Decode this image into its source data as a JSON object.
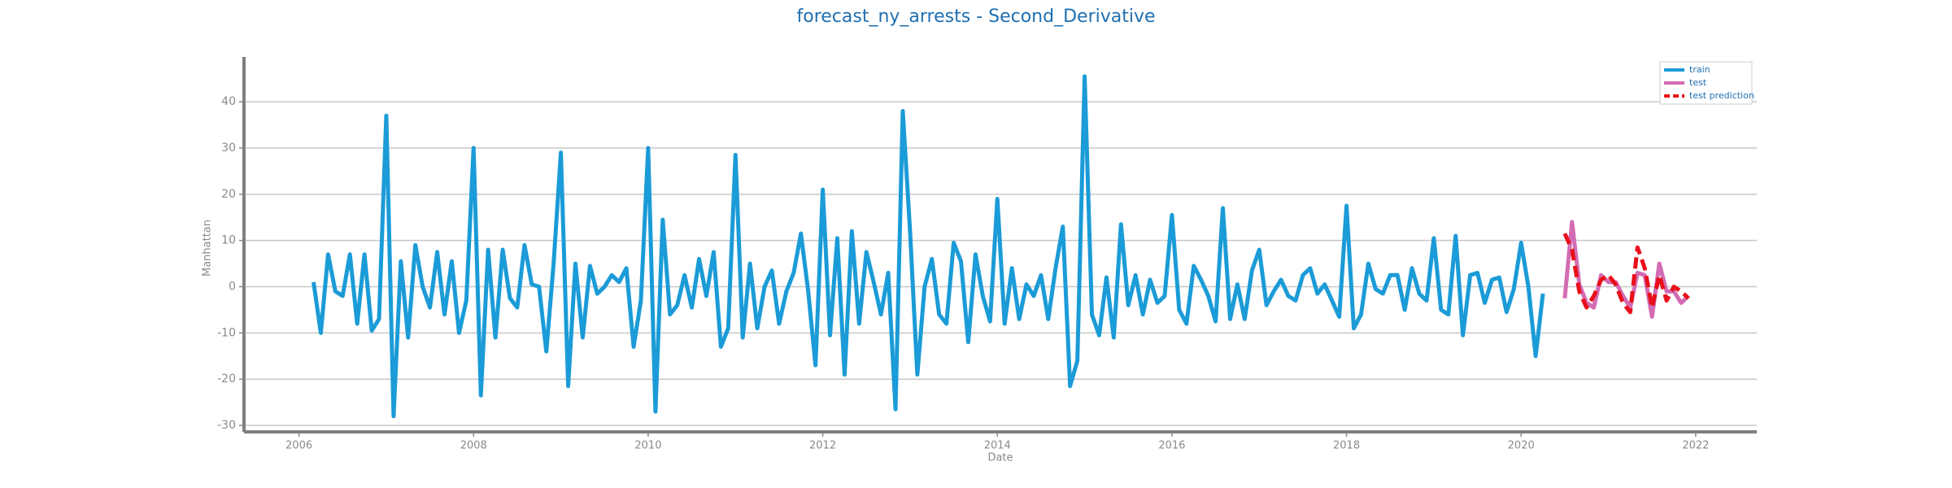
{
  "chart_data": {
    "type": "line",
    "title": "forecast_ny_arrests - Second_Derivative",
    "xlabel": "Date",
    "ylabel": "Manhattan",
    "xlim": [
      2005.37,
      2022.7
    ],
    "xticks": [
      2006,
      2008,
      2010,
      2012,
      2014,
      2016,
      2018,
      2020,
      2022
    ],
    "ylim": [
      -31.4,
      49.7
    ],
    "yticks": [
      -30,
      -20,
      -10,
      0,
      10,
      20,
      30,
      40
    ],
    "grid": true,
    "legend": "upper right",
    "series": [
      {
        "name": "train",
        "color": "#1b9bd7",
        "dash": false,
        "x": [
          "2006-03",
          "2006-04",
          "2006-05",
          "2006-06",
          "2006-07",
          "2006-08",
          "2006-09",
          "2006-10",
          "2006-11",
          "2006-12",
          "2007-01",
          "2007-02",
          "2007-03",
          "2007-04",
          "2007-05",
          "2007-06",
          "2007-07",
          "2007-08",
          "2007-09",
          "2007-10",
          "2007-11",
          "2007-12",
          "2008-01",
          "2008-02",
          "2008-03",
          "2008-04",
          "2008-05",
          "2008-06",
          "2008-07",
          "2008-08",
          "2008-09",
          "2008-10",
          "2008-11",
          "2008-12",
          "2009-01",
          "2009-02",
          "2009-03",
          "2009-04",
          "2009-05",
          "2009-06",
          "2009-07",
          "2009-08",
          "2009-09",
          "2009-10",
          "2009-11",
          "2009-12",
          "2010-01",
          "2010-02",
          "2010-03",
          "2010-04",
          "2010-05",
          "2010-06",
          "2010-07",
          "2010-08",
          "2010-09",
          "2010-10",
          "2010-11",
          "2010-12",
          "2011-01",
          "2011-02",
          "2011-03",
          "2011-04",
          "2011-05",
          "2011-06",
          "2011-07",
          "2011-08",
          "2011-09",
          "2011-10",
          "2011-11",
          "2011-12",
          "2012-01",
          "2012-02",
          "2012-03",
          "2012-04",
          "2012-05",
          "2012-06",
          "2012-07",
          "2012-08",
          "2012-09",
          "2012-10",
          "2012-11",
          "2012-12",
          "2013-01",
          "2013-02",
          "2013-03",
          "2013-04",
          "2013-05",
          "2013-06",
          "2013-07",
          "2013-08",
          "2013-09",
          "2013-10",
          "2013-11",
          "2013-12",
          "2014-01",
          "2014-02",
          "2014-03",
          "2014-04",
          "2014-05",
          "2014-06",
          "2014-07",
          "2014-08",
          "2014-09",
          "2014-10",
          "2014-11",
          "2014-12",
          "2015-01",
          "2015-02",
          "2015-03",
          "2015-04",
          "2015-05",
          "2015-06",
          "2015-07",
          "2015-08",
          "2015-09",
          "2015-10",
          "2015-11",
          "2015-12",
          "2016-01",
          "2016-02",
          "2016-03",
          "2016-04",
          "2016-05",
          "2016-06",
          "2016-07",
          "2016-08",
          "2016-09",
          "2016-10",
          "2016-11",
          "2016-12",
          "2017-01",
          "2017-02",
          "2017-03",
          "2017-04",
          "2017-05",
          "2017-06",
          "2017-07",
          "2017-08",
          "2017-09",
          "2017-10",
          "2017-11",
          "2017-12",
          "2018-01",
          "2018-02",
          "2018-03",
          "2018-04",
          "2018-05",
          "2018-06",
          "2018-07",
          "2018-08",
          "2018-09",
          "2018-10",
          "2018-11",
          "2018-12",
          "2019-01",
          "2019-02",
          "2019-03",
          "2019-04",
          "2019-05",
          "2019-06",
          "2019-07",
          "2019-08",
          "2019-09",
          "2019-10",
          "2019-11",
          "2019-12",
          "2020-01",
          "2020-02",
          "2020-03",
          "2020-04"
        ],
        "values": [
          1,
          -10,
          7,
          -1,
          -2,
          7,
          -8,
          7,
          -9.5,
          -7,
          37,
          -28,
          5.5,
          -11,
          9,
          0,
          -4.5,
          7.5,
          -6,
          5.5,
          -10,
          -3,
          30,
          -23.5,
          8,
          -11,
          8,
          -2.5,
          -4.5,
          9,
          0.5,
          0,
          -14,
          5,
          29,
          -21.5,
          5,
          -11,
          4.5,
          -1.5,
          0,
          2.5,
          1,
          4,
          -13,
          -3,
          30,
          -27,
          14.5,
          -6,
          -4,
          2.5,
          -4.5,
          6,
          -2,
          7.5,
          -13,
          -9,
          28.5,
          -11,
          5,
          -9,
          0,
          3.5,
          -8,
          -1,
          3,
          11.5,
          -1,
          -17,
          21,
          -10.5,
          10.5,
          -19,
          12,
          -8,
          7.5,
          1,
          -6,
          3,
          -26.5,
          38,
          12,
          -19,
          0,
          6,
          -6,
          -8,
          9.5,
          5.5,
          -12,
          7,
          -2,
          -7.5,
          19,
          -8,
          4,
          -7,
          0.5,
          -2,
          2.5,
          -7,
          4,
          13,
          -21.5,
          -16,
          45.5,
          -6,
          -10.5,
          2,
          -11,
          13.5,
          -4,
          2.5,
          -6,
          1.5,
          -3.5,
          -2,
          15.5,
          -5,
          -8,
          4.5,
          1.5,
          -2,
          -7.5,
          17,
          -7,
          0.5,
          -7,
          3.5,
          8,
          -4,
          -1,
          1.5,
          -2,
          -3,
          2.5,
          4,
          -1.5,
          0.5,
          -3,
          -6.5,
          17.5,
          -9,
          -6,
          5,
          -0.5,
          -1.5,
          2.5,
          2.5,
          -5,
          4,
          -1.5,
          -3,
          10.5,
          -5,
          -6,
          11,
          -10.5,
          2.5,
          3,
          -3.5,
          1.5,
          2,
          -5.5,
          -0.5,
          9.5,
          0,
          -15,
          -1.5
        ]
      },
      {
        "name": "test",
        "color": "#d36cb3",
        "dash": false,
        "x": [
          "2020-07",
          "2020-08",
          "2020-09",
          "2020-10",
          "2020-11",
          "2020-12",
          "2021-01",
          "2021-02",
          "2021-03",
          "2021-04",
          "2021-05",
          "2021-06",
          "2021-07",
          "2021-08",
          "2021-09",
          "2021-10",
          "2021-11",
          "2021-12"
        ],
        "values": [
          -2.5,
          14,
          0.5,
          -3.5,
          -4.5,
          2.5,
          1,
          1,
          -2,
          -4.5,
          3,
          2.5,
          -6.5,
          5,
          -1,
          -1,
          -3.5,
          -2
        ]
      },
      {
        "name": "test prediction",
        "color": "#e8101a",
        "dash": true,
        "x": [
          "2020-07",
          "2020-08",
          "2020-09",
          "2020-10",
          "2020-11",
          "2020-12",
          "2021-01",
          "2021-02",
          "2021-03",
          "2021-04",
          "2021-05",
          "2021-06",
          "2021-07",
          "2021-08",
          "2021-09",
          "2021-10",
          "2021-11",
          "2021-12"
        ],
        "values": [
          11.5,
          8,
          -1,
          -4.5,
          -2,
          1.5,
          2.5,
          0.5,
          -3.5,
          -5.5,
          8.5,
          4,
          -4.5,
          2.5,
          -3,
          0,
          -1,
          -2.5
        ]
      }
    ]
  }
}
